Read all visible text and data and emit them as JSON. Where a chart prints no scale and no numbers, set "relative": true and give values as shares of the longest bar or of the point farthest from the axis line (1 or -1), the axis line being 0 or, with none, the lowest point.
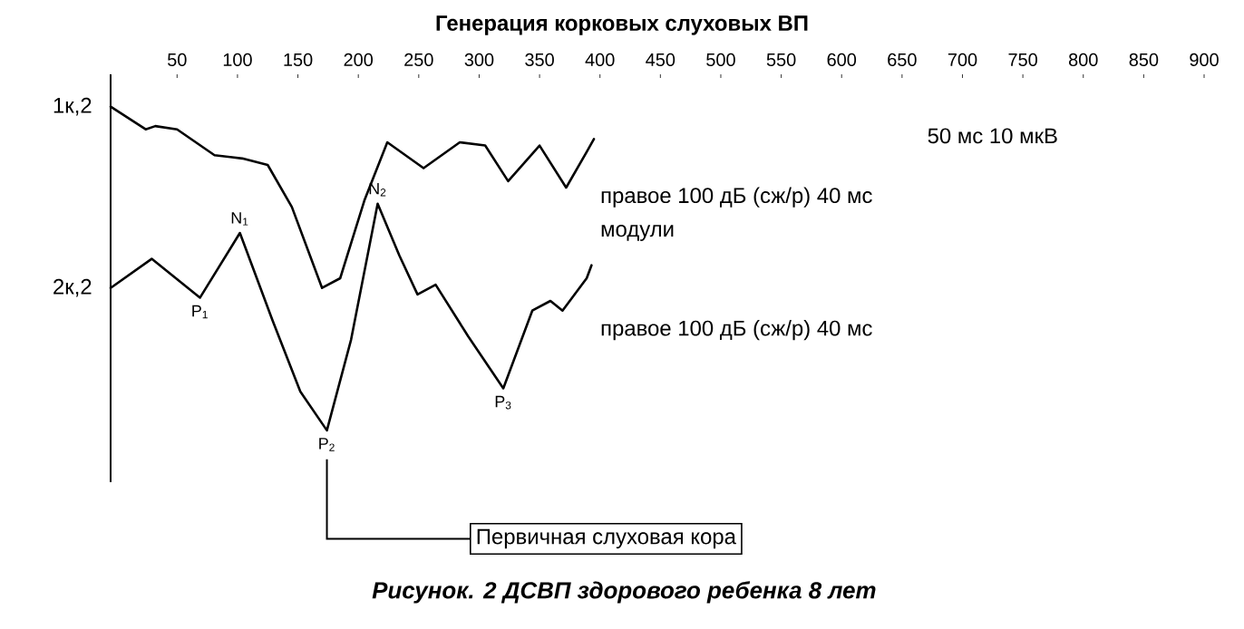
{
  "chart_data": {
    "type": "line",
    "title": "Генерация корковых слуховых ВП",
    "relative": true,
    "xlim": [
      -5,
      900
    ],
    "xticks": [
      50,
      100,
      150,
      200,
      250,
      300,
      350,
      400,
      450,
      500,
      550,
      600,
      650,
      700,
      750,
      800,
      850,
      900
    ],
    "series": [
      {
        "name": "1к,2",
        "color": "#000000",
        "x": [
          -5,
          24,
          32,
          50,
          81,
          104,
          125,
          145,
          170,
          185,
          205,
          224,
          254,
          284,
          305,
          324,
          350,
          372,
          389,
          395
        ],
        "values": [
          1.0,
          0.93,
          0.94,
          0.93,
          0.85,
          0.84,
          0.82,
          0.69,
          0.44,
          0.47,
          0.71,
          0.89,
          0.81,
          0.89,
          0.88,
          0.77,
          0.88,
          0.75,
          0.86,
          0.9
        ]
      },
      {
        "name": "2к,2",
        "color": "#000000",
        "x": [
          -5,
          29,
          69,
          102,
          129,
          152,
          174,
          194,
          216,
          234,
          249,
          264,
          291,
          320,
          344,
          359,
          369,
          389,
          393
        ],
        "values": [
          0.44,
          0.53,
          0.41,
          0.61,
          0.34,
          0.12,
          0.0,
          0.28,
          0.7,
          0.54,
          0.42,
          0.45,
          0.29,
          0.13,
          0.37,
          0.4,
          0.37,
          0.47,
          0.51
        ]
      }
    ],
    "annotations": [
      "50 мс 10 мкВ",
      "правое 100 дБ (сж/р) 40 мс",
      "модули",
      "правое 100 дБ (сж/р) 40 мс",
      "Первичная слуховая кора",
      "Рисунок. 2 ДСВП здорового ребенка 8 лет",
      {
        "text": "P$_{1}$",
        "x": 69,
        "y": 0.41
      },
      {
        "text": "N$_{1}$",
        "x": 102,
        "y": 0.61
      },
      {
        "text": "P$_{2}$",
        "x": 174,
        "y": 0.0
      },
      {
        "text": "N$_{2}$",
        "x": 216,
        "y": 0.7
      },
      {
        "text": "P$_{3}$",
        "x": 320,
        "y": 0.13
      }
    ]
  }
}
